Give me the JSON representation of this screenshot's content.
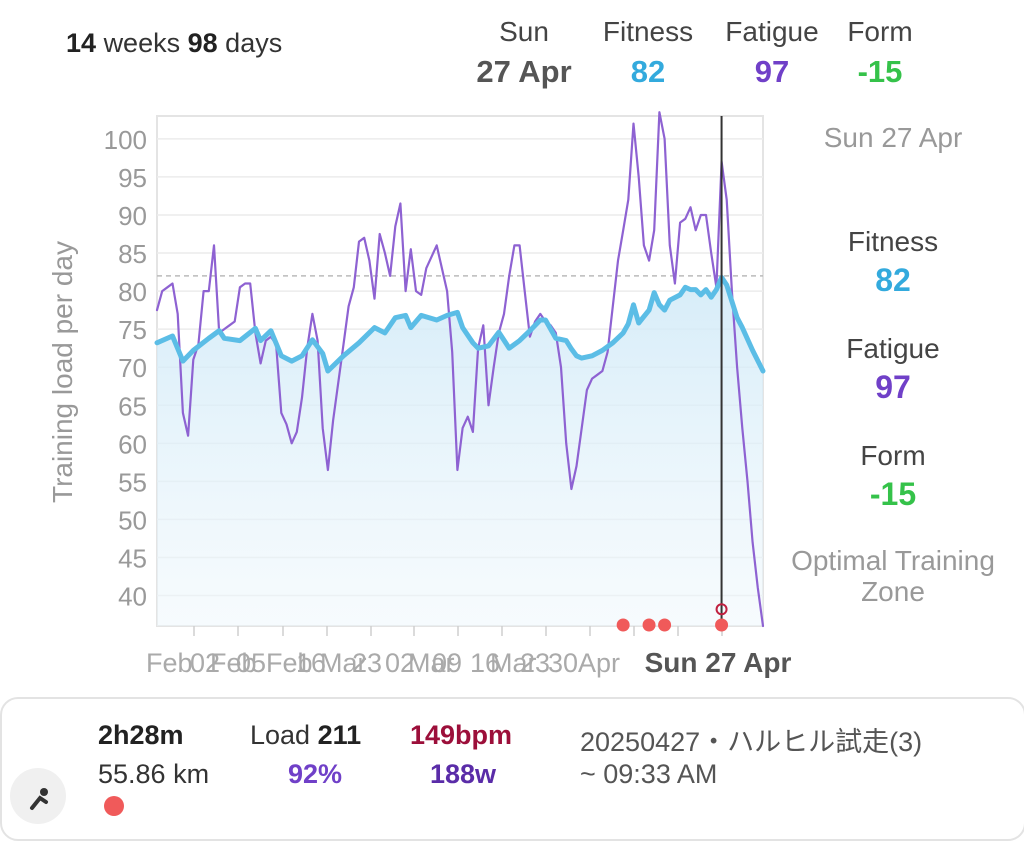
{
  "period": {
    "weeks": "14",
    "weeks_word": "weeks",
    "days": "98",
    "days_word": "days"
  },
  "header": {
    "day": "Sun",
    "date": "27 Apr",
    "fitness_label": "Fitness",
    "fitness_value": "82",
    "fatigue_label": "Fatigue",
    "fatigue_value": "97",
    "form_label": "Form",
    "form_value": "-15"
  },
  "side": {
    "date": "Sun 27 Apr",
    "fitness_label": "Fitness",
    "fitness_value": "82",
    "fatigue_label": "Fatigue",
    "fatigue_value": "97",
    "form_label": "Form",
    "form_value": "-15",
    "zone_label": "Optimal Training Zone"
  },
  "colors": {
    "fitness": "#5bbde6",
    "fatigue": "#8e62d2",
    "form": "#35c24a",
    "activity_dot": "#f05a5a"
  },
  "chart_data": {
    "type": "line",
    "ylabel": "Training load per day",
    "ylim": [
      36,
      103
    ],
    "yticks": [
      40,
      45,
      50,
      55,
      60,
      65,
      70,
      75,
      80,
      85,
      90,
      95,
      100
    ],
    "grid": true,
    "day_range": [
      0,
      98
    ],
    "x_tick_labels": [
      "Feb",
      "02",
      "Feb",
      "05",
      "Feb",
      "16",
      "Mar",
      "23",
      "02",
      "Mar",
      "09",
      "16",
      "Mar",
      "23",
      "30",
      "Apr"
    ],
    "selected_label": "Sun 27 Apr",
    "reference_line": 82,
    "series": [
      {
        "name": "Fitness",
        "values": [
          [
            0,
            73.2
          ],
          [
            3,
            74.1
          ],
          [
            5,
            70.8
          ],
          [
            7,
            72.2
          ],
          [
            10,
            73.8
          ],
          [
            12,
            74.8
          ],
          [
            13,
            73.8
          ],
          [
            16,
            73.5
          ],
          [
            19,
            75.1
          ],
          [
            20,
            73.5
          ],
          [
            22,
            74.8
          ],
          [
            24,
            71.5
          ],
          [
            26,
            70.8
          ],
          [
            28,
            71.5
          ],
          [
            30,
            73.6
          ],
          [
            32,
            71.8
          ],
          [
            33,
            69.5
          ],
          [
            36,
            71.5
          ],
          [
            39,
            73.2
          ],
          [
            42,
            75.2
          ],
          [
            44,
            74.5
          ],
          [
            46,
            76.5
          ],
          [
            48,
            76.8
          ],
          [
            49,
            75.2
          ],
          [
            51,
            76.8
          ],
          [
            54,
            76.2
          ],
          [
            56,
            76.8
          ],
          [
            58,
            77.2
          ],
          [
            59,
            75.2
          ],
          [
            61,
            73.2
          ],
          [
            62,
            72.5
          ],
          [
            64,
            72.8
          ],
          [
            66,
            74.6
          ],
          [
            68,
            72.5
          ],
          [
            70,
            73.5
          ],
          [
            72,
            74.8
          ],
          [
            74,
            76.2
          ],
          [
            75,
            76.2
          ],
          [
            77,
            73.8
          ],
          [
            79,
            73.5
          ],
          [
            80,
            72.4
          ],
          [
            81,
            71.5
          ],
          [
            82,
            71.2
          ],
          [
            84,
            71.5
          ],
          [
            86,
            72.2
          ],
          [
            88,
            73.2
          ],
          [
            90,
            74.5
          ],
          [
            91,
            75.7
          ],
          [
            92,
            78.2
          ],
          [
            93,
            75.8
          ],
          [
            95,
            77.5
          ],
          [
            96,
            79.8
          ],
          [
            97,
            78.2
          ],
          [
            98,
            77.5
          ],
          [
            99,
            78.8
          ],
          [
            101,
            79.5
          ],
          [
            102,
            80.5
          ],
          [
            103,
            80.2
          ],
          [
            104,
            80.2
          ],
          [
            105,
            79.5
          ],
          [
            106,
            80.2
          ],
          [
            107,
            79.2
          ],
          [
            108,
            80.2
          ],
          [
            109,
            81.8
          ],
          [
            110,
            80.8
          ],
          [
            112,
            76.5
          ],
          [
            113,
            75.2
          ],
          [
            115,
            72.2
          ],
          [
            117,
            69.5
          ]
        ]
      },
      {
        "name": "Fatigue",
        "values": [
          [
            0,
            77.5
          ],
          [
            1,
            80
          ],
          [
            2,
            80.5
          ],
          [
            3,
            81
          ],
          [
            4,
            77
          ],
          [
            5,
            64
          ],
          [
            6,
            61
          ],
          [
            7,
            71
          ],
          [
            8,
            73
          ],
          [
            9,
            80
          ],
          [
            10,
            80
          ],
          [
            11,
            86
          ],
          [
            12,
            74.5
          ],
          [
            13,
            75
          ],
          [
            14,
            75.5
          ],
          [
            15,
            76
          ],
          [
            16,
            80.5
          ],
          [
            17,
            81
          ],
          [
            18,
            81
          ],
          [
            19,
            74.5
          ],
          [
            20,
            70.5
          ],
          [
            21,
            73.5
          ],
          [
            22,
            74
          ],
          [
            23,
            73
          ],
          [
            24,
            64
          ],
          [
            25,
            62.5
          ],
          [
            26,
            60
          ],
          [
            27,
            61.5
          ],
          [
            28,
            66
          ],
          [
            29,
            72.5
          ],
          [
            30,
            77
          ],
          [
            31,
            73.5
          ],
          [
            32,
            62
          ],
          [
            33,
            56.5
          ],
          [
            34,
            63
          ],
          [
            35,
            68
          ],
          [
            36,
            73
          ],
          [
            37,
            78
          ],
          [
            38,
            80.5
          ],
          [
            39,
            86.5
          ],
          [
            40,
            87
          ],
          [
            41,
            84
          ],
          [
            42,
            79
          ],
          [
            43,
            87.5
          ],
          [
            44,
            85
          ],
          [
            45,
            82
          ],
          [
            46,
            88.5
          ],
          [
            47,
            91.5
          ],
          [
            48,
            80
          ],
          [
            49,
            85.5
          ],
          [
            50,
            80
          ],
          [
            51,
            79.5
          ],
          [
            52,
            83
          ],
          [
            53,
            84.5
          ],
          [
            54,
            86
          ],
          [
            55,
            83
          ],
          [
            56,
            80
          ],
          [
            57,
            72
          ],
          [
            58,
            56.5
          ],
          [
            59,
            62
          ],
          [
            60,
            63.5
          ],
          [
            61,
            61.5
          ],
          [
            62,
            72.5
          ],
          [
            63,
            75.5
          ],
          [
            64,
            65
          ],
          [
            65,
            70
          ],
          [
            66,
            74.5
          ],
          [
            67,
            77
          ],
          [
            68,
            82
          ],
          [
            69,
            86
          ],
          [
            70,
            86
          ],
          [
            71,
            80
          ],
          [
            72,
            74
          ],
          [
            73,
            76
          ],
          [
            74,
            77
          ],
          [
            75,
            76
          ],
          [
            76,
            75.5
          ],
          [
            77,
            74.5
          ],
          [
            78,
            70
          ],
          [
            79,
            60
          ],
          [
            80,
            54
          ],
          [
            81,
            57
          ],
          [
            82,
            62
          ],
          [
            83,
            67
          ],
          [
            84,
            68.5
          ],
          [
            85,
            69
          ],
          [
            86,
            69.5
          ],
          [
            87,
            72
          ],
          [
            88,
            78
          ],
          [
            89,
            84
          ],
          [
            90,
            88
          ],
          [
            91,
            92
          ],
          [
            92,
            102
          ],
          [
            93,
            95
          ],
          [
            94,
            86
          ],
          [
            95,
            84
          ],
          [
            96,
            88
          ],
          [
            97,
            103.5
          ],
          [
            98,
            100
          ],
          [
            99,
            86
          ],
          [
            100,
            81
          ],
          [
            101,
            89
          ],
          [
            102,
            89.5
          ],
          [
            103,
            91
          ],
          [
            104,
            88
          ],
          [
            105,
            90
          ],
          [
            106,
            90
          ],
          [
            107,
            85
          ],
          [
            108,
            80.5
          ],
          [
            109,
            97
          ],
          [
            110,
            92
          ],
          [
            111,
            80
          ],
          [
            112,
            70
          ],
          [
            113,
            62
          ],
          [
            114,
            55
          ],
          [
            115,
            47
          ],
          [
            116,
            41
          ],
          [
            117,
            36
          ]
        ]
      }
    ],
    "selected": {
      "date": "Sun 27 Apr",
      "fitness": 82,
      "fatigue": 97,
      "form": -15
    },
    "activity_days": [
      90,
      95,
      98,
      109
    ]
  },
  "activity": {
    "duration": "2h28m",
    "distance": "55.86 km",
    "load_label": "Load",
    "load_value": "211",
    "load_pct": "92%",
    "heart_rate": "149bpm",
    "power": "188w",
    "name": "20250427・ハルヒル試走(3)",
    "time": "~ 09:33 AM"
  }
}
